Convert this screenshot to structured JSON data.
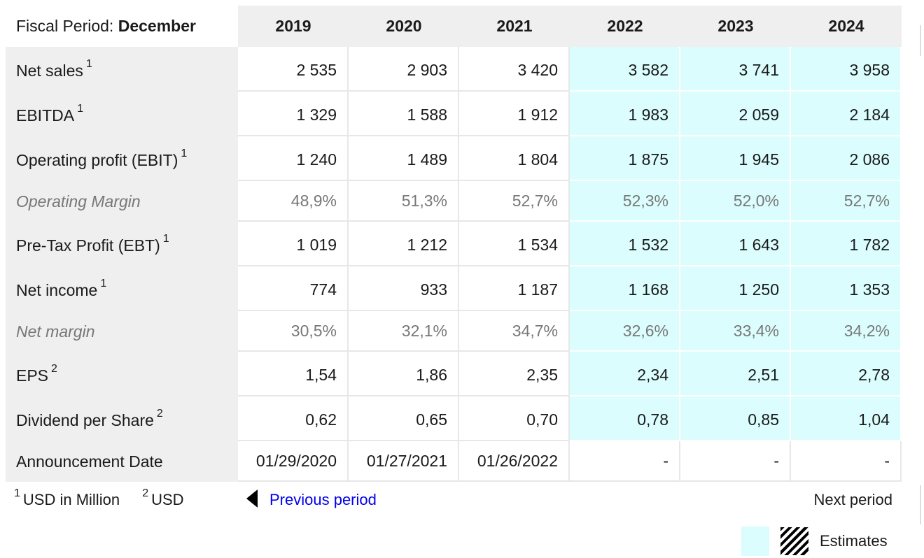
{
  "table": {
    "fiscal_period_label": "Fiscal Period:",
    "fiscal_period_value": "December",
    "years": [
      "2019",
      "2020",
      "2021",
      "2022",
      "2023",
      "2024"
    ],
    "estimate_years": [
      "2022",
      "2023",
      "2024"
    ],
    "rows": [
      {
        "label": "Net sales",
        "note": "1",
        "values": [
          "2 535",
          "2 903",
          "3 420",
          "3 582",
          "3 741",
          "3 958"
        ]
      },
      {
        "label": "EBITDA",
        "note": "1",
        "values": [
          "1 329",
          "1 588",
          "1 912",
          "1 983",
          "2 059",
          "2 184"
        ]
      },
      {
        "label": "Operating profit (EBIT)",
        "note": "1",
        "values": [
          "1 240",
          "1 489",
          "1 804",
          "1 875",
          "1 945",
          "2 086"
        ]
      },
      {
        "label": "Operating Margin",
        "note": "",
        "values": [
          "48,9%",
          "51,3%",
          "52,7%",
          "52,3%",
          "52,0%",
          "52,7%"
        ]
      },
      {
        "label": "Pre-Tax Profit (EBT)",
        "note": "1",
        "values": [
          "1 019",
          "1 212",
          "1 534",
          "1 532",
          "1 643",
          "1 782"
        ]
      },
      {
        "label": "Net income",
        "note": "1",
        "values": [
          "774",
          "933",
          "1 187",
          "1 168",
          "1 250",
          "1 353"
        ]
      },
      {
        "label": "Net margin",
        "note": "",
        "values": [
          "30,5%",
          "32,1%",
          "34,7%",
          "32,6%",
          "33,4%",
          "34,2%"
        ]
      },
      {
        "label": "EPS",
        "note": "2",
        "values": [
          "1,54",
          "1,86",
          "2,35",
          "2,34",
          "2,51",
          "2,78"
        ]
      },
      {
        "label": "Dividend per Share",
        "note": "2",
        "values": [
          "0,62",
          "0,65",
          "0,70",
          "0,78",
          "0,85",
          "1,04"
        ]
      },
      {
        "label": "Announcement Date",
        "note": "",
        "values": [
          "01/29/2020",
          "01/27/2021",
          "01/26/2022",
          "-",
          "-",
          "-"
        ]
      }
    ]
  },
  "footnotes": [
    {
      "mark": "1",
      "text": "USD in Million"
    },
    {
      "mark": "2",
      "text": "USD"
    }
  ],
  "nav": {
    "previous_label": "Previous period",
    "next_label": "Next period"
  },
  "legend": {
    "estimates_label": "Estimates"
  },
  "colors": {
    "estimate_fill": "#dbfdfd",
    "header_fill": "#efefef",
    "link": "#0000ee",
    "muted_text": "#777777"
  }
}
